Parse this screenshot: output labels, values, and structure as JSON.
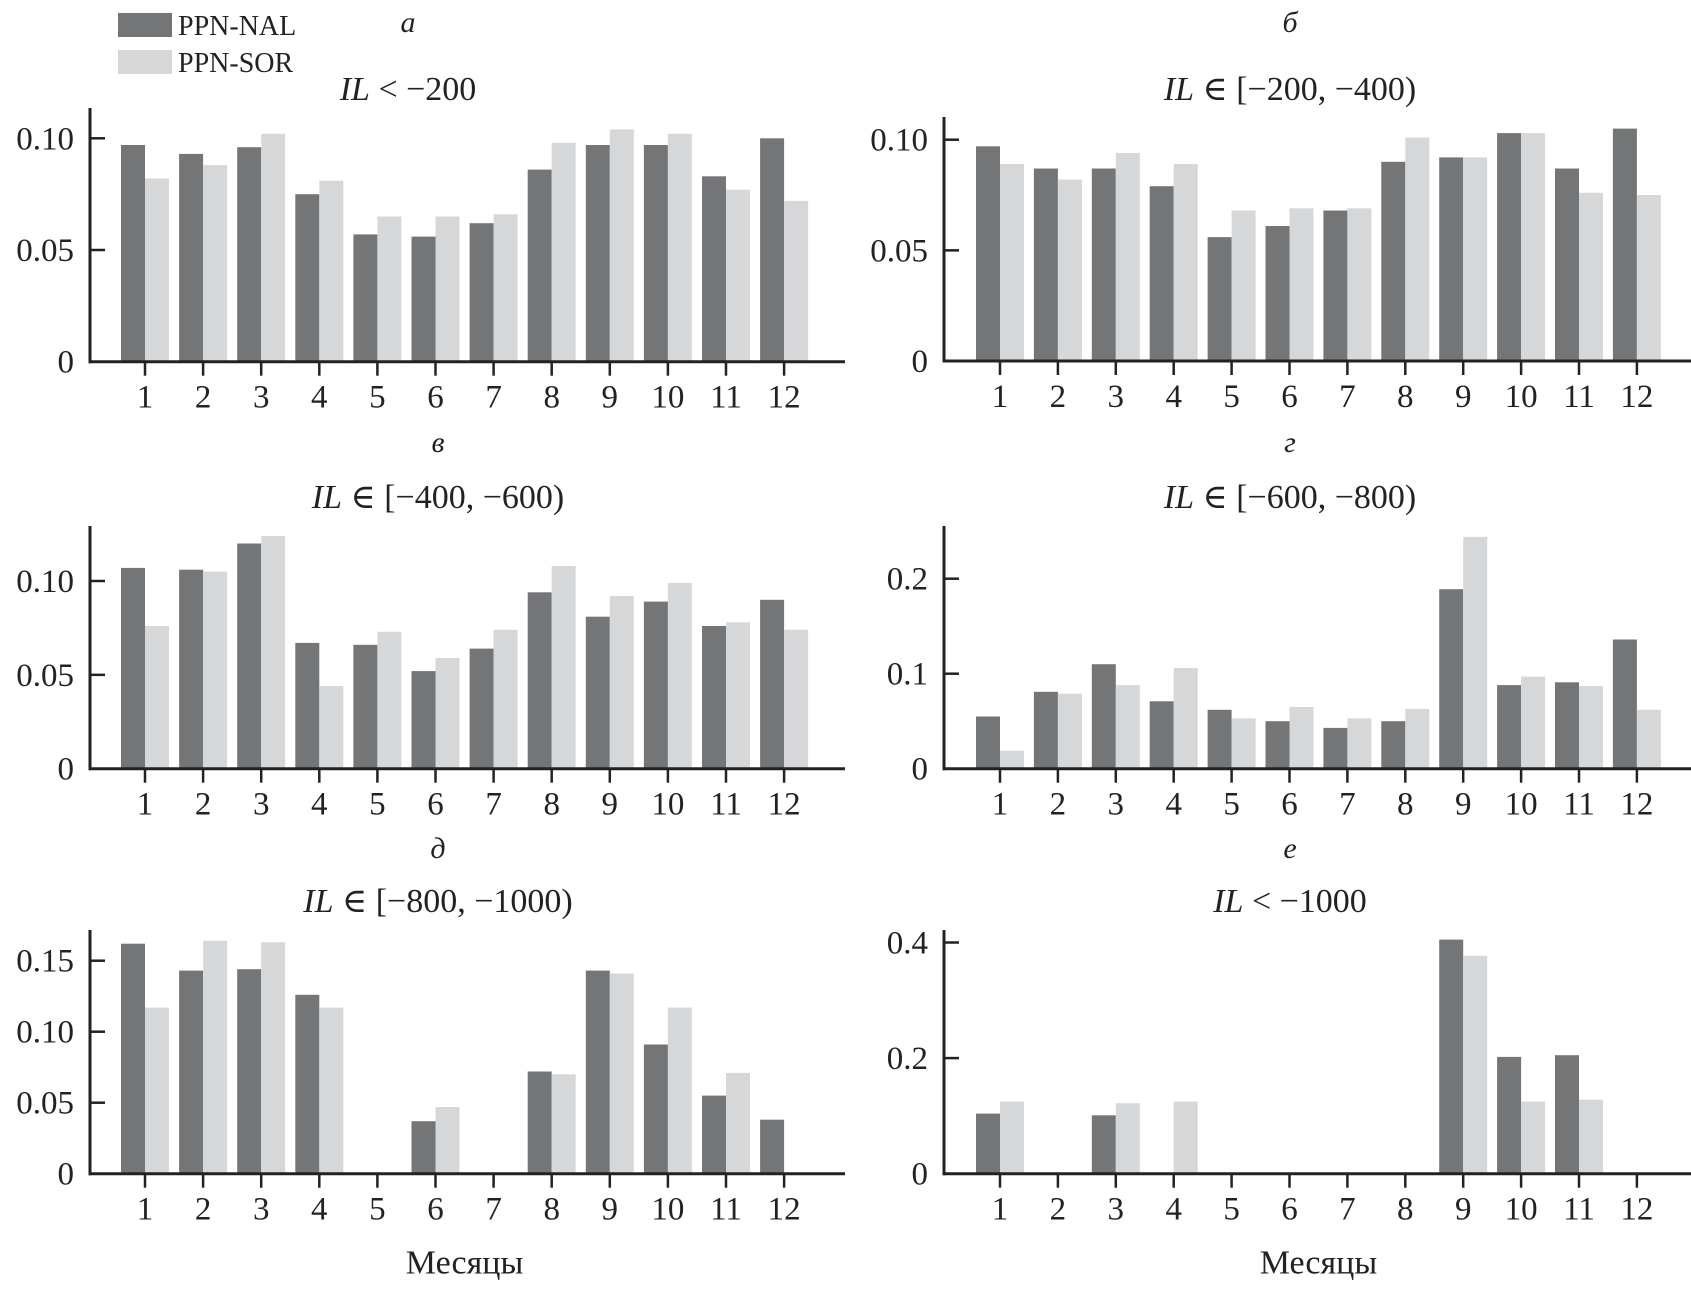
{
  "legend": {
    "items": [
      {
        "label": "PPN-NAL",
        "color": "#747577"
      },
      {
        "label": "PPN-SOR",
        "color": "#d6d7d9"
      }
    ]
  },
  "xlabel_common": "Месяцы",
  "chart_data": [
    {
      "type": "bar",
      "panel_letter": "а",
      "title": "IL < −200",
      "title_parts": {
        "ital": "IL",
        "rest": " < −200"
      },
      "categories": [
        "1",
        "2",
        "3",
        "4",
        "5",
        "6",
        "7",
        "8",
        "9",
        "10",
        "11",
        "12"
      ],
      "yticks": [
        {
          "v": 0,
          "label": "0"
        },
        {
          "v": 0.05,
          "label": "0.05"
        },
        {
          "v": 0.1,
          "label": "0.10"
        }
      ],
      "ylim": [
        0,
        0.11
      ],
      "xlabel": "",
      "series": [
        {
          "name": "PPN-NAL",
          "values": [
            0.097,
            0.093,
            0.096,
            0.075,
            0.057,
            0.056,
            0.062,
            0.086,
            0.097,
            0.097,
            0.083,
            0.1
          ]
        },
        {
          "name": "PPN-SOR",
          "values": [
            0.082,
            0.088,
            0.102,
            0.081,
            0.065,
            0.065,
            0.066,
            0.098,
            0.104,
            0.102,
            0.077,
            0.072
          ]
        }
      ]
    },
    {
      "type": "bar",
      "panel_letter": "б",
      "title": "IL ∈ [−200, −400)",
      "title_parts": {
        "ital": "IL",
        "rest": " ∈ [−200, −400)"
      },
      "categories": [
        "1",
        "2",
        "3",
        "4",
        "5",
        "6",
        "7",
        "8",
        "9",
        "10",
        "11",
        "12"
      ],
      "yticks": [
        {
          "v": 0,
          "label": "0"
        },
        {
          "v": 0.05,
          "label": "0.05"
        },
        {
          "v": 0.1,
          "label": "0.10"
        }
      ],
      "ylim": [
        0,
        0.11
      ],
      "xlabel": "",
      "series": [
        {
          "name": "PPN-NAL",
          "values": [
            0.097,
            0.087,
            0.087,
            0.079,
            0.056,
            0.061,
            0.068,
            0.09,
            0.092,
            0.103,
            0.087,
            0.105
          ]
        },
        {
          "name": "PPN-SOR",
          "values": [
            0.089,
            0.082,
            0.094,
            0.089,
            0.068,
            0.069,
            0.069,
            0.101,
            0.092,
            0.103,
            0.076,
            0.075
          ]
        }
      ]
    },
    {
      "type": "bar",
      "panel_letter": "в",
      "title": "IL ∈ [−400, −600)",
      "title_parts": {
        "ital": "IL",
        "rest": " ∈ [−400, −600)"
      },
      "categories": [
        "1",
        "2",
        "3",
        "4",
        "5",
        "6",
        "7",
        "8",
        "9",
        "10",
        "11",
        "12"
      ],
      "yticks": [
        {
          "v": 0,
          "label": "0"
        },
        {
          "v": 0.05,
          "label": "0.05"
        },
        {
          "v": 0.1,
          "label": "0.10"
        }
      ],
      "ylim": [
        0,
        0.13
      ],
      "xlabel": "",
      "series": [
        {
          "name": "PPN-NAL",
          "values": [
            0.107,
            0.106,
            0.12,
            0.067,
            0.066,
            0.052,
            0.064,
            0.094,
            0.081,
            0.089,
            0.076,
            0.09
          ]
        },
        {
          "name": "PPN-SOR",
          "values": [
            0.076,
            0.105,
            0.124,
            0.044,
            0.073,
            0.059,
            0.074,
            0.108,
            0.092,
            0.099,
            0.078,
            0.074
          ]
        }
      ]
    },
    {
      "type": "bar",
      "panel_letter": "г",
      "title": "IL ∈ [−600, −800)",
      "title_parts": {
        "ital": "IL",
        "rest": " ∈ [−600, −800)"
      },
      "categories": [
        "1",
        "2",
        "3",
        "4",
        "5",
        "6",
        "7",
        "8",
        "9",
        "10",
        "11",
        "12"
      ],
      "yticks": [
        {
          "v": 0,
          "label": "0"
        },
        {
          "v": 0.1,
          "label": "0.1"
        },
        {
          "v": 0.2,
          "label": "0.2"
        }
      ],
      "ylim": [
        0,
        0.255
      ],
      "xlabel": "",
      "series": [
        {
          "name": "PPN-NAL",
          "values": [
            0.055,
            0.081,
            0.11,
            0.071,
            0.062,
            0.05,
            0.043,
            0.05,
            0.189,
            0.088,
            0.091,
            0.136
          ]
        },
        {
          "name": "PPN-SOR",
          "values": [
            0.019,
            0.079,
            0.088,
            0.106,
            0.053,
            0.065,
            0.053,
            0.063,
            0.244,
            0.097,
            0.087,
            0.062
          ]
        }
      ]
    },
    {
      "type": "bar",
      "panel_letter": "д",
      "title": "IL ∈ [−800, −1000)",
      "title_parts": {
        "ital": "IL",
        "rest": " ∈ [−800, −1000)"
      },
      "categories": [
        "1",
        "2",
        "3",
        "4",
        "5",
        "6",
        "7",
        "8",
        "9",
        "10",
        "11",
        "12"
      ],
      "yticks": [
        {
          "v": 0,
          "label": "0"
        },
        {
          "v": 0.05,
          "label": "0.05"
        },
        {
          "v": 0.1,
          "label": "0.10"
        },
        {
          "v": 0.15,
          "label": "0.15"
        }
      ],
      "ylim": [
        0,
        0.17
      ],
      "xlabel": "Месяцы",
      "series": [
        {
          "name": "PPN-NAL",
          "values": [
            0.162,
            0.143,
            0.144,
            0.126,
            0,
            0.037,
            0,
            0.072,
            0.143,
            0.091,
            0.055,
            0.038
          ]
        },
        {
          "name": "PPN-SOR",
          "values": [
            0.117,
            0.164,
            0.163,
            0.117,
            0,
            0.047,
            0,
            0.07,
            0.141,
            0.117,
            0.071,
            0
          ]
        }
      ]
    },
    {
      "type": "bar",
      "panel_letter": "е",
      "title": "IL < −1000",
      "title_parts": {
        "ital": "IL",
        "rest": " < −1000"
      },
      "categories": [
        "1",
        "2",
        "3",
        "4",
        "5",
        "6",
        "7",
        "8",
        "9",
        "10",
        "11",
        "12"
      ],
      "yticks": [
        {
          "v": 0,
          "label": "0"
        },
        {
          "v": 0.2,
          "label": "0.2"
        },
        {
          "v": 0.4,
          "label": "0.4"
        }
      ],
      "ylim": [
        0,
        0.4
      ],
      "xlabel": "Месяцы",
      "series": [
        {
          "name": "PPN-NAL",
          "values": [
            0.104,
            0,
            0.101,
            0,
            0,
            0,
            0,
            0,
            0.405,
            0.202,
            0.205,
            0
          ]
        },
        {
          "name": "PPN-SOR",
          "values": [
            0.125,
            0,
            0.122,
            0.125,
            0,
            0,
            0,
            0,
            0.377,
            0.125,
            0.128,
            0
          ]
        }
      ]
    }
  ]
}
